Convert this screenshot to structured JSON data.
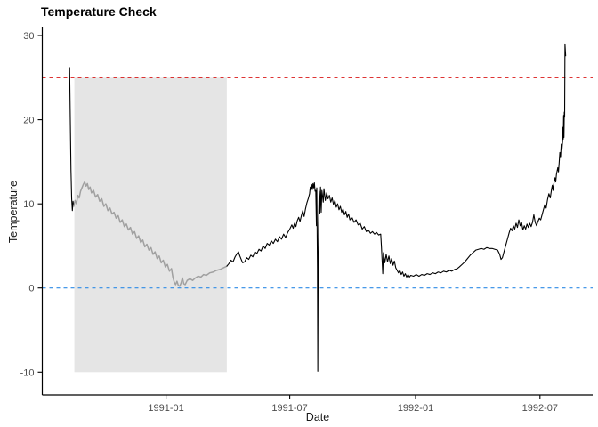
{
  "window": {
    "background": "#ffffff"
  },
  "chart_data": {
    "type": "line",
    "title": "Temperature Check",
    "xlabel": "Date",
    "ylabel": "Temperature",
    "grid": false,
    "legend": false,
    "x_axis": {
      "unit": "days since 1990-08-13",
      "xlim_days": [
        -40,
        765
      ],
      "ticks": [
        {
          "day": 141,
          "label": "1991-01"
        },
        {
          "day": 322,
          "label": "1991-07"
        },
        {
          "day": 506,
          "label": "1992-01"
        },
        {
          "day": 688,
          "label": "1992-07"
        }
      ]
    },
    "y_axis": {
      "ylim": [
        -12.72,
        31.06
      ],
      "ticks": [
        {
          "value": -10,
          "label": "-10"
        },
        {
          "value": 0,
          "label": "0"
        },
        {
          "value": 10,
          "label": "10"
        },
        {
          "value": 20,
          "label": "20"
        },
        {
          "value": 30,
          "label": "30"
        }
      ]
    },
    "reference_lines": [
      {
        "name": "threshold-line-25",
        "y": 25,
        "color": "#d91818",
        "dash": [
          4,
          4
        ],
        "width": 1.2
      },
      {
        "name": "zero-line",
        "y": 0,
        "color": "#2e8be6",
        "dash": [
          4,
          4
        ],
        "width": 1.2
      }
    ],
    "highlight_region": {
      "day_start": 7,
      "day_end": 230,
      "ymin": -10,
      "ymax": 25,
      "fill": "#e5e5e5"
    },
    "styles": {
      "axis_color": "#000000",
      "tick_label_color": "#4d4d4d",
      "tick_label_size": 11,
      "axis_title_color": "#1a1a1a",
      "title_color": "#000000"
    },
    "series": [
      {
        "name": "temperature-start",
        "color": "#000000",
        "width": 1.1,
        "points": [
          [
            0,
            26.2
          ],
          [
            1,
            20.0
          ],
          [
            2,
            14.0
          ],
          [
            3,
            10.6
          ],
          [
            4,
            9.2
          ],
          [
            5,
            10.3
          ],
          [
            6,
            9.7
          ]
        ]
      },
      {
        "name": "temperature-highlighted",
        "color": "#a0a0a0",
        "width": 1.5,
        "points": [
          [
            6,
            9.7
          ],
          [
            8,
            10.4
          ],
          [
            10,
            10.0
          ],
          [
            12,
            11.0
          ],
          [
            14,
            10.7
          ],
          [
            16,
            11.5
          ],
          [
            18,
            11.9
          ],
          [
            20,
            12.3
          ],
          [
            22,
            12.6
          ],
          [
            24,
            12.1
          ],
          [
            26,
            12.4
          ],
          [
            28,
            11.7
          ],
          [
            30,
            12.0
          ],
          [
            32,
            11.3
          ],
          [
            35,
            11.6
          ],
          [
            38,
            10.8
          ],
          [
            41,
            11.1
          ],
          [
            44,
            10.3
          ],
          [
            47,
            10.6
          ],
          [
            50,
            9.7
          ],
          [
            53,
            10.0
          ],
          [
            56,
            9.2
          ],
          [
            59,
            9.5
          ],
          [
            62,
            8.8
          ],
          [
            65,
            9.0
          ],
          [
            68,
            8.3
          ],
          [
            71,
            8.6
          ],
          [
            74,
            7.8
          ],
          [
            77,
            8.1
          ],
          [
            80,
            7.3
          ],
          [
            83,
            7.6
          ],
          [
            86,
            6.9
          ],
          [
            89,
            7.2
          ],
          [
            92,
            6.4
          ],
          [
            95,
            6.7
          ],
          [
            98,
            5.9
          ],
          [
            101,
            6.2
          ],
          [
            104,
            5.4
          ],
          [
            107,
            5.7
          ],
          [
            110,
            4.9
          ],
          [
            113,
            5.2
          ],
          [
            116,
            4.5
          ],
          [
            119,
            4.8
          ],
          [
            122,
            4.0
          ],
          [
            125,
            4.3
          ],
          [
            128,
            3.5
          ],
          [
            131,
            3.8
          ],
          [
            134,
            3.0
          ],
          [
            137,
            3.3
          ],
          [
            140,
            2.5
          ],
          [
            143,
            2.8
          ],
          [
            146,
            2.0
          ],
          [
            149,
            2.3
          ],
          [
            151,
            1.3
          ],
          [
            153,
            0.7
          ],
          [
            155,
            0.4
          ],
          [
            157,
            0.8
          ],
          [
            159,
            0.3
          ],
          [
            161,
            0.2
          ],
          [
            163,
            0.6
          ],
          [
            165,
            1.2
          ],
          [
            167,
            0.5
          ],
          [
            169,
            0.4
          ],
          [
            172,
            0.9
          ],
          [
            176,
            1.1
          ],
          [
            180,
            0.9
          ],
          [
            184,
            1.2
          ],
          [
            188,
            1.4
          ],
          [
            192,
            1.3
          ],
          [
            196,
            1.6
          ],
          [
            200,
            1.5
          ],
          [
            205,
            1.8
          ],
          [
            210,
            1.9
          ],
          [
            215,
            2.1
          ],
          [
            220,
            2.2
          ],
          [
            225,
            2.4
          ],
          [
            230,
            2.6
          ]
        ]
      },
      {
        "name": "temperature-main",
        "color": "#000000",
        "width": 1.1,
        "points": [
          [
            230,
            2.6
          ],
          [
            233,
            2.9
          ],
          [
            236,
            3.3
          ],
          [
            239,
            3.1
          ],
          [
            242,
            3.7
          ],
          [
            245,
            4.1
          ],
          [
            247,
            4.3
          ],
          [
            249,
            3.8
          ],
          [
            251,
            3.4
          ],
          [
            253,
            3.0
          ],
          [
            256,
            3.1
          ],
          [
            259,
            3.6
          ],
          [
            262,
            3.4
          ],
          [
            265,
            3.9
          ],
          [
            268,
            3.7
          ],
          [
            271,
            4.3
          ],
          [
            274,
            4.1
          ],
          [
            277,
            4.6
          ],
          [
            280,
            4.4
          ],
          [
            283,
            5.0
          ],
          [
            286,
            4.7
          ],
          [
            289,
            5.3
          ],
          [
            292,
            5.1
          ],
          [
            295,
            5.6
          ],
          [
            298,
            5.3
          ],
          [
            301,
            5.8
          ],
          [
            304,
            5.5
          ],
          [
            307,
            6.1
          ],
          [
            310,
            5.8
          ],
          [
            313,
            6.4
          ],
          [
            316,
            6.0
          ],
          [
            319,
            6.6
          ],
          [
            322,
            7.0
          ],
          [
            325,
            7.5
          ],
          [
            327,
            7.1
          ],
          [
            329,
            7.7
          ],
          [
            331,
            7.3
          ],
          [
            333,
            8.0
          ],
          [
            335,
            8.4
          ],
          [
            337,
            7.9
          ],
          [
            339,
            8.6
          ],
          [
            341,
            9.2
          ],
          [
            343,
            8.5
          ],
          [
            345,
            9.4
          ],
          [
            347,
            10.1
          ],
          [
            349,
            10.6
          ],
          [
            351,
            11.2
          ],
          [
            352,
            12.0
          ],
          [
            353,
            11.6
          ],
          [
            354,
            12.3
          ],
          [
            355,
            11.7
          ],
          [
            356,
            12.4
          ],
          [
            357,
            11.9
          ],
          [
            358,
            12.5
          ],
          [
            359,
            11.5
          ],
          [
            360,
            11.6
          ],
          [
            361,
            7.4
          ],
          [
            361.5,
            11.9
          ],
          [
            362.5,
            2.4
          ],
          [
            363,
            -9.9
          ],
          [
            363.5,
            2.0
          ],
          [
            364,
            7.0
          ],
          [
            365,
            11.5
          ],
          [
            366,
            8.9
          ],
          [
            367,
            12.0
          ],
          [
            368,
            9.0
          ],
          [
            369,
            11.6
          ],
          [
            371,
            10.2
          ],
          [
            372,
            11.8
          ],
          [
            374,
            10.4
          ],
          [
            376,
            11.3
          ],
          [
            378,
            10.6
          ],
          [
            380,
            11.0
          ],
          [
            382,
            10.2
          ],
          [
            384,
            10.7
          ],
          [
            386,
            9.9
          ],
          [
            388,
            10.4
          ],
          [
            390,
            9.6
          ],
          [
            392,
            10.0
          ],
          [
            394,
            9.3
          ],
          [
            396,
            9.7
          ],
          [
            398,
            9.0
          ],
          [
            400,
            9.4
          ],
          [
            402,
            8.7
          ],
          [
            404,
            9.1
          ],
          [
            406,
            8.4
          ],
          [
            408,
            8.8
          ],
          [
            410,
            8.1
          ],
          [
            413,
            8.4
          ],
          [
            416,
            7.8
          ],
          [
            419,
            8.1
          ],
          [
            422,
            7.5
          ],
          [
            425,
            7.7
          ],
          [
            428,
            7.0
          ],
          [
            431,
            7.3
          ],
          [
            434,
            6.7
          ],
          [
            437,
            6.9
          ],
          [
            440,
            6.5
          ],
          [
            443,
            6.7
          ],
          [
            446,
            6.4
          ],
          [
            449,
            6.6
          ],
          [
            452,
            6.3
          ],
          [
            455,
            6.4
          ],
          [
            456,
            5.0
          ],
          [
            457,
            3.4
          ],
          [
            458,
            1.7
          ],
          [
            459,
            4.2
          ],
          [
            461,
            3.0
          ],
          [
            463,
            4.0
          ],
          [
            465,
            3.1
          ],
          [
            467,
            3.8
          ],
          [
            469,
            2.9
          ],
          [
            471,
            3.5
          ],
          [
            473,
            2.7
          ],
          [
            475,
            3.2
          ],
          [
            477,
            2.4
          ],
          [
            479,
            2.1
          ],
          [
            481,
            1.8
          ],
          [
            483,
            2.1
          ],
          [
            485,
            1.6
          ],
          [
            487,
            1.9
          ],
          [
            489,
            1.4
          ],
          [
            491,
            1.7
          ],
          [
            493,
            1.3
          ],
          [
            495,
            1.6
          ],
          [
            497,
            1.3
          ],
          [
            499,
            1.5
          ],
          [
            503,
            1.4
          ],
          [
            507,
            1.6
          ],
          [
            511,
            1.4
          ],
          [
            515,
            1.6
          ],
          [
            519,
            1.5
          ],
          [
            523,
            1.7
          ],
          [
            527,
            1.6
          ],
          [
            531,
            1.8
          ],
          [
            535,
            1.7
          ],
          [
            539,
            1.9
          ],
          [
            543,
            1.8
          ],
          [
            547,
            2.0
          ],
          [
            551,
            1.9
          ],
          [
            555,
            2.1
          ],
          [
            559,
            2.0
          ],
          [
            563,
            2.2
          ],
          [
            567,
            2.3
          ],
          [
            570,
            2.5
          ],
          [
            574,
            2.8
          ],
          [
            578,
            3.1
          ],
          [
            582,
            3.5
          ],
          [
            586,
            3.9
          ],
          [
            590,
            4.2
          ],
          [
            594,
            4.5
          ],
          [
            598,
            4.6
          ],
          [
            602,
            4.7
          ],
          [
            606,
            4.6
          ],
          [
            610,
            4.8
          ],
          [
            614,
            4.7
          ],
          [
            618,
            4.7
          ],
          [
            622,
            4.6
          ],
          [
            626,
            4.5
          ],
          [
            629,
            4.0
          ],
          [
            631,
            3.4
          ],
          [
            633,
            3.6
          ],
          [
            635,
            4.2
          ],
          [
            637,
            4.8
          ],
          [
            639,
            5.4
          ],
          [
            641,
            6.0
          ],
          [
            643,
            6.6
          ],
          [
            645,
            7.1
          ],
          [
            647,
            6.8
          ],
          [
            649,
            7.4
          ],
          [
            651,
            7.0
          ],
          [
            653,
            7.7
          ],
          [
            655,
            7.2
          ],
          [
            657,
            8.1
          ],
          [
            659,
            7.4
          ],
          [
            661,
            7.8
          ],
          [
            663,
            6.9
          ],
          [
            665,
            7.4
          ],
          [
            667,
            7.0
          ],
          [
            669,
            7.6
          ],
          [
            671,
            7.2
          ],
          [
            673,
            7.7
          ],
          [
            675,
            7.3
          ],
          [
            677,
            7.8
          ],
          [
            679,
            8.7
          ],
          [
            681,
            7.8
          ],
          [
            683,
            7.4
          ],
          [
            685,
            7.9
          ],
          [
            687,
            8.3
          ],
          [
            689,
            8.1
          ],
          [
            691,
            8.7
          ],
          [
            693,
            9.3
          ],
          [
            695,
            9.9
          ],
          [
            697,
            9.5
          ],
          [
            699,
            10.5
          ],
          [
            701,
            11.2
          ],
          [
            703,
            10.7
          ],
          [
            705,
            11.8
          ],
          [
            706,
            12.2
          ],
          [
            707,
            11.6
          ],
          [
            708,
            12.3
          ],
          [
            710,
            13.1
          ],
          [
            711,
            12.6
          ],
          [
            712,
            13.5
          ],
          [
            714,
            14.3
          ],
          [
            715,
            13.8
          ],
          [
            716,
            14.9
          ],
          [
            717,
            16.1
          ],
          [
            718,
            15.5
          ],
          [
            719,
            17.1
          ],
          [
            720,
            16.4
          ],
          [
            721,
            17.4
          ],
          [
            721.5,
            19.1
          ],
          [
            722,
            17.7
          ],
          [
            722.5,
            20.5
          ],
          [
            723,
            17.9
          ],
          [
            723.5,
            20.9
          ],
          [
            724,
            20.3
          ],
          [
            724.5,
            29.0
          ],
          [
            725.5,
            27.6
          ]
        ]
      }
    ]
  }
}
